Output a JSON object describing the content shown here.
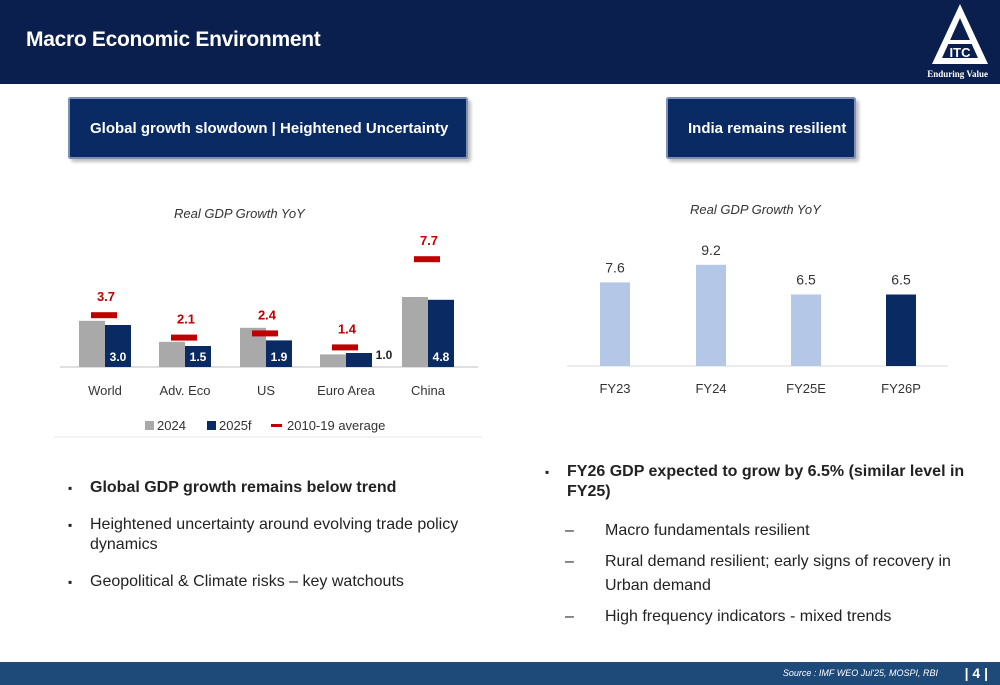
{
  "header": {
    "title": "Macro Economic Environment",
    "logo_text": "ITC",
    "tagline": "Enduring Value"
  },
  "left": {
    "pill_label": "Global growth slowdown | Heightened Uncertainty",
    "bullets": [
      "Global GDP growth remains below trend",
      "Heightened uncertainty around evolving trade policy dynamics",
      "Geopolitical & Climate risks – key watchouts"
    ]
  },
  "right": {
    "pill_label": "India remains resilient",
    "main_bullet": "FY26 GDP expected to grow by 6.5% (similar level in FY25)",
    "sub_bullets": [
      "Macro fundamentals resilient",
      "Rural demand resilient; early signs of recovery in Urban demand",
      "High frequency indicators - mixed trends"
    ]
  },
  "footer": {
    "source": "Source : IMF WEO Jul'25, MOSPI, RBI",
    "page": "| 4 |"
  },
  "colors": {
    "navy": "#0a1f4d",
    "bar_2024": "#a9a9a9",
    "bar_2025f": "#0a2a63",
    "avg": "#c00000",
    "india_light": "#b4c7e7",
    "india_dark": "#0a2a63",
    "footer": "#1d4a78"
  },
  "chart_data": [
    {
      "type": "bar",
      "title": "Real GDP Growth YoY",
      "categories": [
        "World",
        "Adv. Eco",
        "US",
        "Euro Area",
        "China"
      ],
      "series": [
        {
          "name": "2024",
          "values": [
            3.3,
            1.8,
            2.8,
            0.9,
            5.0
          ]
        },
        {
          "name": "2025f",
          "values": [
            3.0,
            1.5,
            1.9,
            1.0,
            4.8
          ]
        },
        {
          "name": "2010-19 average",
          "values": [
            3.7,
            2.1,
            2.4,
            1.4,
            7.7
          ]
        }
      ],
      "labeled_series": "2025f",
      "legend": "bottom",
      "ylim": [
        0,
        9
      ],
      "grid": false
    },
    {
      "type": "bar",
      "title": "Real GDP Growth YoY",
      "categories": [
        "FY23",
        "FY24",
        "FY25E",
        "FY26P"
      ],
      "values": [
        7.6,
        9.2,
        6.5,
        6.5
      ],
      "ylim": [
        0,
        10
      ],
      "grid": false
    }
  ]
}
